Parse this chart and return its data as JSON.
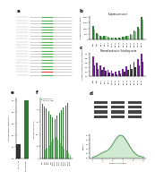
{
  "panel_b_dark": [
    1200,
    600,
    300,
    350,
    250,
    200,
    150,
    200,
    280,
    350,
    500,
    800,
    1100,
    2000
  ],
  "panel_b_light": [
    900,
    500,
    280,
    300,
    220,
    180,
    130,
    180,
    250,
    300,
    450,
    700,
    950,
    1800
  ],
  "panel_b_labels": [
    "Ang2",
    "Ang3",
    "miR-1",
    "miR-7",
    "miR-9",
    "miR-21",
    "miR-22",
    "miR-23",
    "miR-24",
    "miR-25",
    "miR-26",
    "miR-27",
    "miR-28",
    "miR-29"
  ],
  "panel_b_ylabel": "Luciferase activity (RLU)",
  "panel_b_title": "Expression score",
  "panel_c_purple": [
    0.9,
    0.6,
    0.5,
    0.4,
    0.3,
    0.25,
    0.2,
    0.25,
    0.35,
    0.45,
    0.55,
    0.65,
    0.75,
    1.0
  ],
  "panel_c_black": [
    0.5,
    0.35,
    0.3,
    0.25,
    0.18,
    0.14,
    0.1,
    0.14,
    0.2,
    0.28,
    0.35,
    0.42,
    0.5,
    0.65
  ],
  "panel_c_labels": [
    "Ang2",
    "Ang3",
    "miR-1",
    "miR-7",
    "miR-9",
    "miR-21",
    "miR-22",
    "miR-23",
    "miR-24",
    "miR-25",
    "miR-26",
    "miR-27",
    "miR-28",
    "miR-29"
  ],
  "panel_c_ylabel": "Luciferase activity (normalized)",
  "panel_c_title": "Normalized ratio / binding score",
  "panel_e_values": [
    0.25,
    1.0
  ],
  "panel_e_colors": [
    "#333333",
    "#2e7d32"
  ],
  "panel_e_labels": [
    "EV / control",
    "ETV_card1 DNA"
  ],
  "panel_e_ylabel": "Relative mRNA expression",
  "panel_f_dark": [
    90,
    85,
    82,
    78,
    72,
    68,
    65,
    70,
    75,
    80,
    84,
    87,
    91,
    95
  ],
  "panel_f_light": [
    10,
    15,
    18,
    22,
    28,
    32,
    35,
    30,
    25,
    20,
    16,
    13,
    9,
    5
  ],
  "panel_f_labels": [
    "Ang2",
    "Ang3",
    "miR-1",
    "miR-7",
    "miR-9",
    "miR-21",
    "miR-22",
    "miR-23",
    "miR-24",
    "miR-25",
    "miR-26",
    "miR-27",
    "miR-28",
    "miR-29"
  ],
  "panel_f_ylabel": "Percent of cells (%)",
  "legend_dark": "ETV card1 DNA",
  "legend_light": "ETV card1 siRNA",
  "bg_color": "#ffffff",
  "dark_green": "#2e7d32",
  "light_green": "#81c784",
  "purple": "#7b1fa2",
  "black_bar": "#333333",
  "wb_bg": "#e8e8e8",
  "flow_green_fill": "#a5d6a7",
  "flow_green_line": "#2e7d32"
}
